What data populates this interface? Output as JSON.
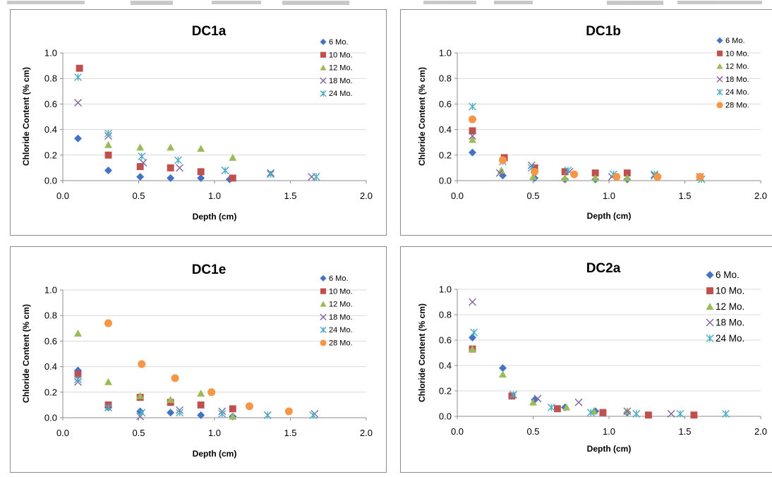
{
  "colors": {
    "s6": "#4472c4",
    "s10": "#c0504d",
    "s12": "#9bbb59",
    "s18": "#8064a2",
    "s24": "#4bacc6",
    "s28": "#f79646"
  },
  "chart_data": [
    {
      "type": "scatter",
      "title": "DC1a",
      "xlabel": "Depth (cm)",
      "ylabel": "Chloride Content (% cm)",
      "xlim": [
        0,
        2.0
      ],
      "ylim": [
        0,
        1.0
      ],
      "xticks": [
        "0.0",
        "0.5",
        "1.0",
        "1.5",
        "2.0"
      ],
      "yticks": [
        "0.0",
        "0.2",
        "0.4",
        "0.6",
        "0.8",
        "1.0"
      ],
      "grid": "horizontal",
      "legend": "top-right",
      "series": [
        {
          "name": "6 Mo.",
          "key": "s6",
          "marker": "diamond",
          "points": [
            [
              0.1,
              0.33
            ],
            [
              0.3,
              0.08
            ],
            [
              0.51,
              0.03
            ],
            [
              0.71,
              0.02
            ],
            [
              0.91,
              0.02
            ],
            [
              1.1,
              0.01
            ]
          ]
        },
        {
          "name": "10 Mo.",
          "key": "s10",
          "marker": "square",
          "points": [
            [
              0.11,
              0.88
            ],
            [
              0.3,
              0.2
            ],
            [
              0.51,
              0.11
            ],
            [
              0.71,
              0.1
            ],
            [
              0.91,
              0.07
            ],
            [
              1.12,
              0.02
            ]
          ]
        },
        {
          "name": "12 Mo.",
          "key": "s12",
          "marker": "triangle",
          "points": [
            [
              0.3,
              0.28
            ],
            [
              0.51,
              0.26
            ],
            [
              0.71,
              0.26
            ],
            [
              0.91,
              0.25
            ],
            [
              1.12,
              0.18
            ]
          ]
        },
        {
          "name": "18 Mo.",
          "key": "s18",
          "marker": "x",
          "points": [
            [
              0.1,
              0.61
            ],
            [
              0.3,
              0.35
            ],
            [
              0.53,
              0.14
            ],
            [
              0.77,
              0.1
            ],
            [
              1.07,
              0.08
            ],
            [
              1.37,
              0.06
            ],
            [
              1.64,
              0.03
            ]
          ]
        },
        {
          "name": "24 Mo.",
          "key": "s24",
          "marker": "asterisk",
          "points": [
            [
              0.1,
              0.81
            ],
            [
              0.3,
              0.37
            ],
            [
              0.52,
              0.19
            ],
            [
              0.76,
              0.16
            ],
            [
              1.07,
              0.08
            ],
            [
              1.37,
              0.05
            ],
            [
              1.67,
              0.03
            ]
          ]
        }
      ]
    },
    {
      "type": "scatter",
      "title": "DC1b",
      "xlabel": "Depth (cm)",
      "ylabel": "Chloride Content (% cm)",
      "xlim": [
        0,
        2.0
      ],
      "ylim": [
        0,
        1.0
      ],
      "xticks": [
        "0.0",
        "0.5",
        "1.0",
        "1.5",
        "2.0"
      ],
      "yticks": [
        "0.0",
        "0.2",
        "0.4",
        "0.6",
        "0.8",
        "1.0"
      ],
      "grid": "horizontal",
      "legend": "top-right",
      "series": [
        {
          "name": "6 Mo.",
          "key": "s6",
          "marker": "diamond",
          "points": [
            [
              0.1,
              0.22
            ],
            [
              0.3,
              0.04
            ],
            [
              0.51,
              0.02
            ],
            [
              0.71,
              0.01
            ],
            [
              0.91,
              0.01
            ],
            [
              1.12,
              0.01
            ]
          ]
        },
        {
          "name": "10 Mo.",
          "key": "s10",
          "marker": "square",
          "points": [
            [
              0.1,
              0.39
            ],
            [
              0.31,
              0.18
            ],
            [
              0.51,
              0.1
            ],
            [
              0.71,
              0.07
            ],
            [
              0.91,
              0.06
            ],
            [
              1.12,
              0.06
            ]
          ]
        },
        {
          "name": "12 Mo.",
          "key": "s12",
          "marker": "triangle",
          "points": [
            [
              0.1,
              0.32
            ],
            [
              0.29,
              0.08
            ],
            [
              0.5,
              0.03
            ],
            [
              0.71,
              0.02
            ],
            [
              0.91,
              0.02
            ],
            [
              1.12,
              0.02
            ]
          ]
        },
        {
          "name": "18 Mo.",
          "key": "s18",
          "marker": "x",
          "points": [
            [
              0.1,
              0.35
            ],
            [
              0.28,
              0.06
            ],
            [
              0.49,
              0.12
            ],
            [
              0.74,
              0.07
            ],
            [
              1.02,
              0.03
            ],
            [
              1.3,
              0.04
            ],
            [
              1.6,
              0.03
            ]
          ]
        },
        {
          "name": "24 Mo.",
          "key": "s24",
          "marker": "asterisk",
          "points": [
            [
              0.1,
              0.58
            ],
            [
              0.3,
              0.15
            ],
            [
              0.49,
              0.1
            ],
            [
              0.73,
              0.08
            ],
            [
              1.03,
              0.05
            ],
            [
              1.3,
              0.05
            ],
            [
              1.61,
              0.01
            ]
          ]
        },
        {
          "name": "28 Mo.",
          "key": "s28",
          "marker": "circle",
          "points": [
            [
              0.1,
              0.48
            ],
            [
              0.3,
              0.16
            ],
            [
              0.51,
              0.07
            ],
            [
              0.77,
              0.05
            ],
            [
              1.05,
              0.03
            ],
            [
              1.32,
              0.03
            ],
            [
              1.6,
              0.03
            ]
          ]
        }
      ]
    },
    {
      "type": "scatter",
      "title": "DC1e",
      "xlabel": "Depth (cm)",
      "ylabel": "Chloride Content (% cm)",
      "xlim": [
        0,
        2.0
      ],
      "ylim": [
        0,
        1.0
      ],
      "xticks": [
        "0.0",
        "0.5",
        "1.0",
        "1.5",
        "2.0"
      ],
      "yticks": [
        "0.0",
        "0.2",
        "0.4",
        "0.6",
        "0.8",
        "1.0"
      ],
      "grid": "horizontal",
      "legend": "top-right",
      "series": [
        {
          "name": "6 Mo.",
          "key": "s6",
          "marker": "diamond",
          "points": [
            [
              0.1,
              0.37
            ],
            [
              0.3,
              0.08
            ],
            [
              0.51,
              0.05
            ],
            [
              0.71,
              0.04
            ],
            [
              0.91,
              0.02
            ],
            [
              1.12,
              0.01
            ]
          ]
        },
        {
          "name": "10 Mo.",
          "key": "s10",
          "marker": "square",
          "points": [
            [
              0.1,
              0.34
            ],
            [
              0.3,
              0.1
            ],
            [
              0.51,
              0.16
            ],
            [
              0.71,
              0.12
            ],
            [
              0.91,
              0.1
            ],
            [
              1.12,
              0.07
            ]
          ]
        },
        {
          "name": "12 Mo.",
          "key": "s12",
          "marker": "triangle",
          "points": [
            [
              0.1,
              0.66
            ],
            [
              0.3,
              0.28
            ],
            [
              0.51,
              0.17
            ],
            [
              0.71,
              0.14
            ],
            [
              0.91,
              0.19
            ],
            [
              1.12,
              0.01
            ]
          ]
        },
        {
          "name": "18 Mo.",
          "key": "s18",
          "marker": "x",
          "points": [
            [
              0.1,
              0.28
            ],
            [
              0.3,
              0.08
            ],
            [
              0.51,
              0.01
            ],
            [
              0.77,
              0.06
            ],
            [
              1.05,
              0.05
            ],
            [
              1.35,
              0.02
            ],
            [
              1.66,
              0.03
            ]
          ]
        },
        {
          "name": "24 Mo.",
          "key": "s24",
          "marker": "asterisk",
          "points": [
            [
              0.1,
              0.3
            ],
            [
              0.3,
              0.08
            ],
            [
              0.52,
              0.04
            ],
            [
              0.77,
              0.04
            ],
            [
              1.05,
              0.03
            ],
            [
              1.35,
              0.02
            ],
            [
              1.65,
              0.02
            ]
          ]
        },
        {
          "name": "28 Mo.",
          "key": "s28",
          "marker": "circle",
          "points": [
            [
              0.3,
              0.74
            ],
            [
              0.52,
              0.42
            ],
            [
              0.74,
              0.31
            ],
            [
              0.98,
              0.2
            ],
            [
              1.23,
              0.09
            ],
            [
              1.49,
              0.05
            ]
          ]
        }
      ]
    },
    {
      "type": "scatter",
      "title": "DC2a",
      "xlabel": "Depth (cm)",
      "ylabel": "Chloride Content (% cm)",
      "xlim": [
        0,
        2.0
      ],
      "ylim": [
        0,
        1.0
      ],
      "xticks": [
        "0.0",
        "0.5",
        "1.0",
        "1.5",
        "2.0"
      ],
      "yticks": [
        "0.0",
        "0.2",
        "0.4",
        "0.6",
        "0.8",
        "1.0"
      ],
      "grid": "horizontal",
      "legend": "top-right",
      "series": [
        {
          "name": "6 Mo.",
          "key": "s6",
          "marker": "diamond",
          "points": [
            [
              0.1,
              0.62
            ],
            [
              0.3,
              0.38
            ],
            [
              0.51,
              0.13
            ],
            [
              0.71,
              0.07
            ],
            [
              0.91,
              0.04
            ],
            [
              1.12,
              0.03
            ]
          ]
        },
        {
          "name": "10 Mo.",
          "key": "s10",
          "marker": "square",
          "points": [
            [
              0.1,
              0.53
            ],
            [
              0.36,
              0.16
            ],
            [
              0.66,
              0.06
            ],
            [
              0.96,
              0.03
            ],
            [
              1.26,
              0.01
            ],
            [
              1.56,
              0.01
            ]
          ]
        },
        {
          "name": "12 Mo.",
          "key": "s12",
          "marker": "triangle",
          "points": [
            [
              0.1,
              0.53
            ],
            [
              0.3,
              0.33
            ],
            [
              0.5,
              0.11
            ],
            [
              0.72,
              0.07
            ],
            [
              0.9,
              0.04
            ],
            [
              1.12,
              0.04
            ]
          ]
        },
        {
          "name": "18 Mo.",
          "key": "s18",
          "marker": "x",
          "points": [
            [
              0.1,
              0.9
            ],
            [
              0.37,
              0.17
            ],
            [
              0.53,
              0.14
            ],
            [
              0.8,
              0.11
            ],
            [
              1.12,
              0.04
            ],
            [
              1.41,
              0.02
            ]
          ]
        },
        {
          "name": "24 Mo.",
          "key": "s24",
          "marker": "asterisk",
          "points": [
            [
              0.11,
              0.66
            ],
            [
              0.37,
              0.17
            ],
            [
              0.62,
              0.07
            ],
            [
              0.88,
              0.03
            ],
            [
              1.18,
              0.02
            ],
            [
              1.47,
              0.02
            ],
            [
              1.77,
              0.02
            ]
          ]
        }
      ]
    }
  ]
}
